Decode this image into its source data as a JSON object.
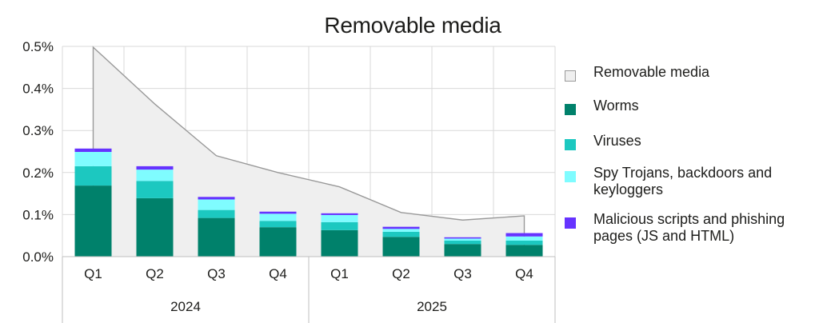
{
  "chart_data": {
    "type": "bar",
    "title": "Removable media",
    "xlabel": "",
    "ylabel": "",
    "ylim": [
      0,
      0.5
    ],
    "yticks": [
      "0.0%",
      "0.1%",
      "0.2%",
      "0.3%",
      "0.4%",
      "0.5%"
    ],
    "categories": [
      "Q1",
      "Q2",
      "Q3",
      "Q4",
      "Q1",
      "Q2",
      "Q3",
      "Q4"
    ],
    "groups": [
      {
        "label": "2024",
        "count": 4
      },
      {
        "label": "2025",
        "count": 4
      }
    ],
    "stacked": true,
    "grid": true,
    "legend_position": "right",
    "series": [
      {
        "name": "Worms",
        "kind": "bar",
        "color": "#00816b",
        "values": [
          0.169,
          0.139,
          0.092,
          0.07,
          0.063,
          0.047,
          0.03,
          0.028
        ]
      },
      {
        "name": "Viruses",
        "kind": "bar",
        "color": "#1cc8c0",
        "values": [
          0.046,
          0.041,
          0.019,
          0.015,
          0.019,
          0.012,
          0.008,
          0.01
        ]
      },
      {
        "name": "Spy Trojans, backdoors and keyloggers",
        "kind": "bar",
        "color": "#7ffcff",
        "values": [
          0.034,
          0.027,
          0.025,
          0.017,
          0.017,
          0.007,
          0.005,
          0.01
        ]
      },
      {
        "name": "Malicious scripts and phishing pages (JS and HTML)",
        "kind": "bar",
        "color": "#6633ff",
        "values": [
          0.008,
          0.008,
          0.006,
          0.005,
          0.004,
          0.005,
          0.003,
          0.008
        ]
      }
    ],
    "area": {
      "name": "Removable media",
      "kind": "area",
      "fill": "#efefef",
      "stroke": "#999999",
      "values": [
        0.498,
        0.363,
        0.24,
        0.2,
        0.166,
        0.105,
        0.087,
        0.097
      ]
    }
  },
  "legend": [
    {
      "key": "removable-media",
      "label": "Removable media",
      "color": "#efefef",
      "border": "#999999"
    },
    {
      "key": "worms",
      "label": "Worms",
      "color": "#00816b"
    },
    {
      "key": "viruses",
      "label": "Viruses",
      "color": "#1cc8c0"
    },
    {
      "key": "spy-trojans",
      "label": "Spy Trojans, backdoors and keyloggers",
      "color": "#7ffcff"
    },
    {
      "key": "malicious-scripts",
      "label": "Malicious scripts and phishing pages (JS and HTML)",
      "color": "#6633ff"
    }
  ]
}
